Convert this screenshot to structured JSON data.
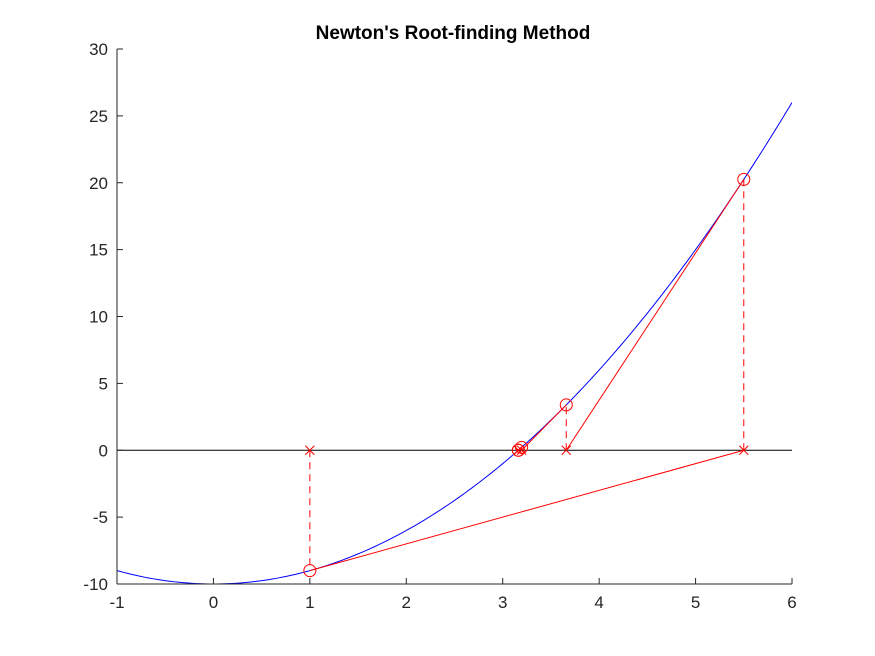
{
  "chart_data": {
    "type": "line",
    "title": "Newton's Root-finding Method",
    "xlabel": "",
    "ylabel": "",
    "xlim": [
      -1,
      6
    ],
    "ylim": [
      -10,
      30
    ],
    "xticks": [
      -1,
      0,
      1,
      2,
      3,
      4,
      5,
      6
    ],
    "yticks": [
      -10,
      -5,
      0,
      5,
      10,
      15,
      20,
      25,
      30
    ],
    "grid": false,
    "function": {
      "expression": "y = x^2 - 10",
      "x_range": [
        -1,
        6
      ],
      "color": "#0000ff"
    },
    "zero_line": {
      "y": 0,
      "color": "#000000"
    },
    "iterations": [
      {
        "x": 1.0,
        "fx": -9.0
      },
      {
        "x": 5.5,
        "fx": 20.25
      },
      {
        "x": 3.659,
        "fx": 3.389
      },
      {
        "x": 3.196,
        "fx": 0.214
      },
      {
        "x": 3.1625,
        "fx": 0.0012
      },
      {
        "x": 3.1623,
        "fx": 0.0
      }
    ],
    "colors": {
      "function": "#0000ff",
      "newton": "#ff0000",
      "axis": "#262626"
    },
    "markers": {
      "on_curve": "circle",
      "on_axis": "x"
    }
  }
}
